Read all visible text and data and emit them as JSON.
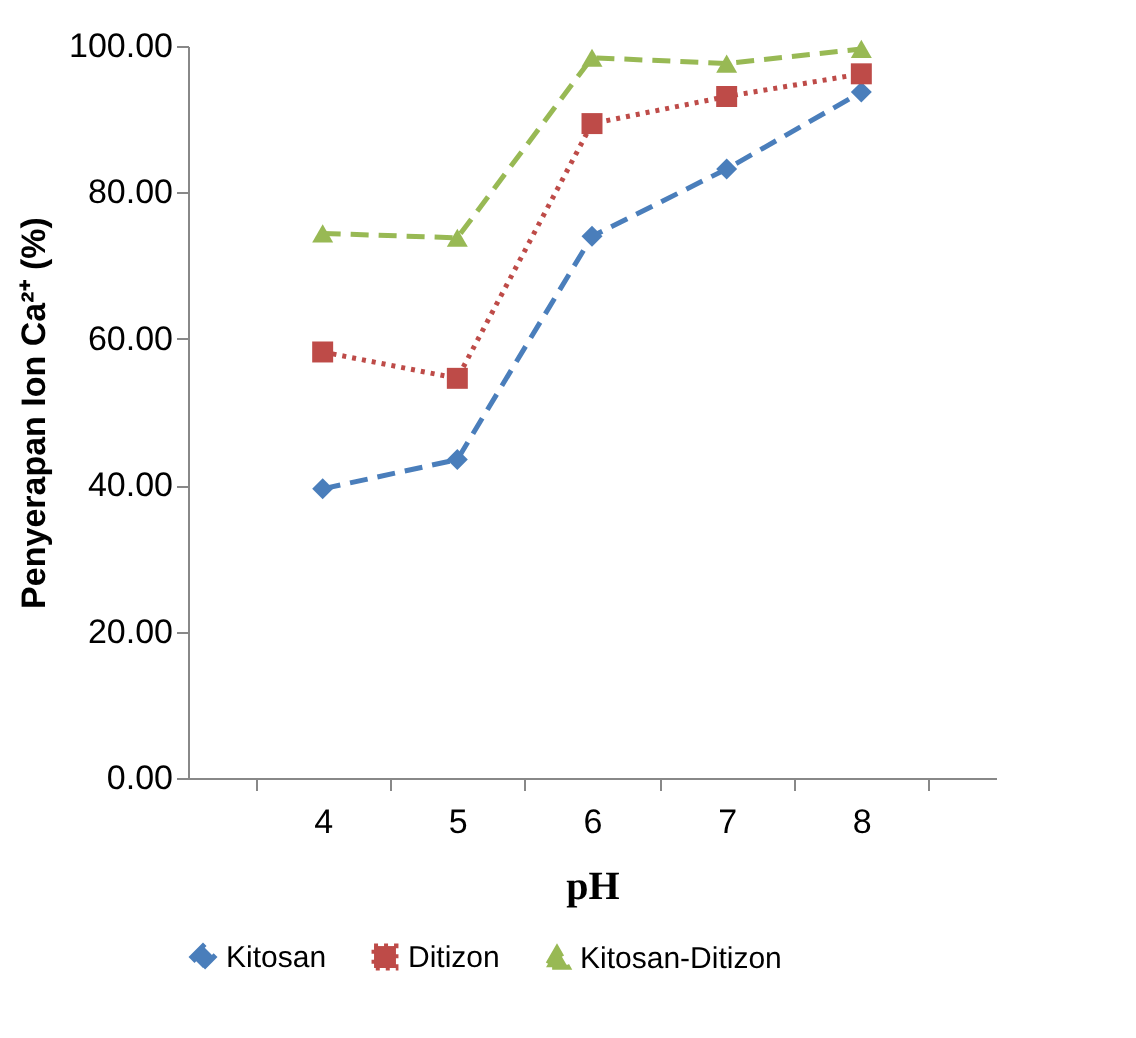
{
  "chart_data": {
    "type": "line",
    "xlabel": "pH",
    "ylabel": "Penyerapan Ion Ca²⁺ (%)",
    "categories": [
      "4",
      "5",
      "6",
      "7",
      "8"
    ],
    "series": [
      {
        "name": "Kitosan",
        "color": "#4a7ebb",
        "marker": "diamond",
        "line_style": "dashed",
        "values": [
          39.5,
          43.5,
          74.0,
          83.2,
          93.7
        ]
      },
      {
        "name": "Ditizon",
        "color": "#be4b48",
        "marker": "square",
        "line_style": "dotted",
        "values": [
          58.2,
          54.6,
          89.4,
          93.1,
          96.2
        ]
      },
      {
        "name": "Kitosan-Ditizon",
        "color": "#98b954",
        "marker": "triangle",
        "line_style": "dashed",
        "values": [
          74.4,
          73.8,
          98.4,
          97.6,
          99.6
        ]
      }
    ],
    "ylim": [
      0,
      100
    ],
    "yticks": [
      {
        "value": 0,
        "label": "0.00"
      },
      {
        "value": 20,
        "label": "20.00"
      },
      {
        "value": 40,
        "label": "40.00"
      },
      {
        "value": 60,
        "label": "60.00"
      },
      {
        "value": 80,
        "label": "80.00"
      },
      {
        "value": 100,
        "label": "100.00"
      }
    ],
    "grid": false,
    "legend": "bottom"
  }
}
